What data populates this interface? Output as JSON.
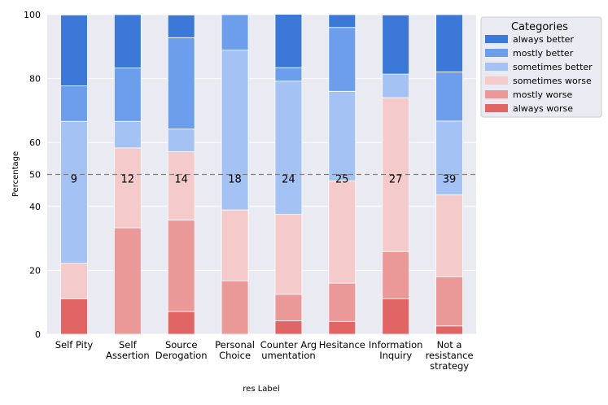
{
  "chart_data": {
    "type": "bar",
    "stacked": true,
    "title": "",
    "xlabel": "res Label",
    "ylabel": "Percentage",
    "ylim": [
      0,
      100
    ],
    "yticks": [
      0,
      20,
      40,
      50,
      60,
      80,
      100
    ],
    "grid": true,
    "reference_line": {
      "y": 50,
      "style": "dashed",
      "color": "#808080"
    },
    "categories": [
      [
        "Self Pity"
      ],
      [
        "Self",
        "Assertion"
      ],
      [
        "Source",
        "Derogation"
      ],
      [
        "Personal",
        "Choice"
      ],
      [
        "Counter Arg",
        "umentation"
      ],
      [
        "Hesitance"
      ],
      [
        "Information",
        "Inquiry"
      ],
      [
        "Not a",
        "resistance",
        "strategy"
      ]
    ],
    "counts": [
      "9",
      "12",
      "14",
      "18",
      "24",
      "25",
      "27",
      "39"
    ],
    "legend": {
      "title": "Categories",
      "placement": "outside-right"
    },
    "series": [
      {
        "name": "always worse",
        "color": "#e26566",
        "values": [
          11.1,
          0,
          7.1,
          0,
          4.2,
          4.0,
          11.1,
          2.6
        ]
      },
      {
        "name": "mostly worse",
        "color": "#ea9898",
        "values": [
          0,
          33.3,
          28.6,
          16.7,
          8.3,
          12.0,
          14.8,
          15.4
        ]
      },
      {
        "name": "sometimes worse",
        "color": "#f4caca",
        "values": [
          11.1,
          25.0,
          21.4,
          22.2,
          25.0,
          32.0,
          48.1,
          25.6
        ]
      },
      {
        "name": "sometimes better",
        "color": "#a4c2f4",
        "values": [
          44.4,
          8.3,
          7.1,
          50.0,
          41.7,
          28.0,
          7.4,
          23.1
        ]
      },
      {
        "name": "mostly better",
        "color": "#6d9eeb",
        "values": [
          11.1,
          16.7,
          28.6,
          11.1,
          4.2,
          20.0,
          0,
          15.4
        ]
      },
      {
        "name": "always better",
        "color": "#3c78d8",
        "values": [
          22.2,
          16.7,
          7.1,
          0,
          16.7,
          4.0,
          18.5,
          17.9
        ]
      }
    ]
  }
}
